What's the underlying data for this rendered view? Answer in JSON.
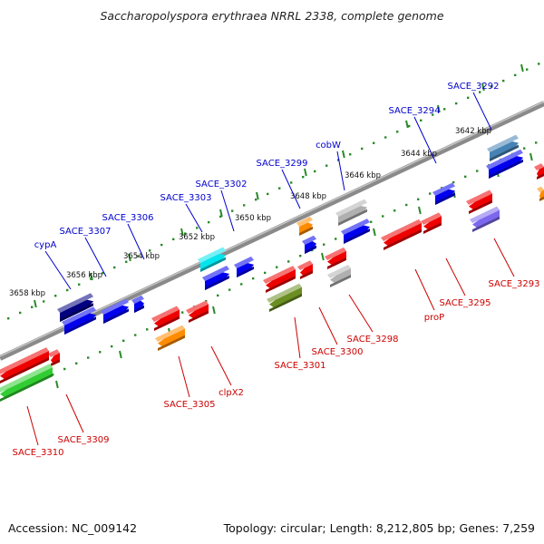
{
  "title": "Saccharopolyspora erythraea NRRL 2338, complete genome",
  "footer": {
    "accession": "Accession: NC_009142",
    "summary": "Topology: circular; Length: 8,212,805 bp; Genes: 7,259"
  },
  "colors": {
    "backbone": "#8a8a8a",
    "tick": "#2a8a2a",
    "label_forward": "#0000cc",
    "label_reverse": "#cc0000",
    "kbp_label": "#111111",
    "gene_blue": "#0000ee",
    "gene_navy": "#000080",
    "gene_red": "#ee0000",
    "gene_orange": "#ff8c00",
    "gene_cyan": "#00e5ee",
    "gene_gray": "#b0b0b0",
    "gene_olive": "#6b8e23",
    "gene_green": "#32cd32",
    "gene_steel": "#4682b4",
    "gene_slate": "#7b68ee"
  },
  "kbp_labels": [
    "3642 kbp",
    "3644 kbp",
    "3646 kbp",
    "3648 kbp",
    "3650 kbp",
    "3652 kbp",
    "3654 kbp",
    "3656 kbp",
    "3658 kbp"
  ],
  "forward_genes": [
    "SACE_3292",
    "SACE_3294",
    "cobW",
    "SACE_3299",
    "SACE_3302",
    "SACE_3303",
    "SACE_3306",
    "SACE_3307",
    "cypA"
  ],
  "reverse_genes": [
    "SACE_3293",
    "SACE_3295",
    "proP",
    "SACE_3298",
    "SACE_3300",
    "SACE_3301",
    "clpX2",
    "SACE_3305",
    "SACE_3309",
    "SACE_3310"
  ]
}
